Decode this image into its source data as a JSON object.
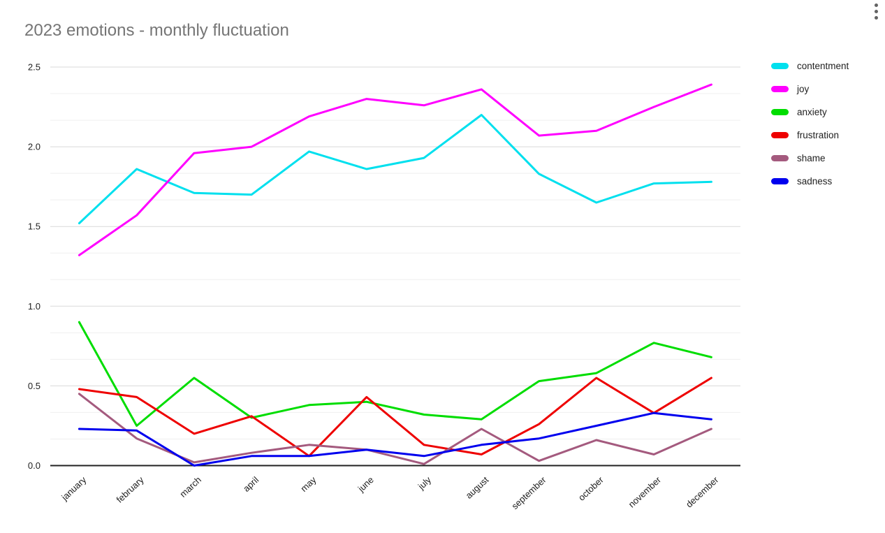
{
  "title": "2023 emotions - monthly fluctuation",
  "menu": {
    "kebab_icon": "vertical-three-dot-menu"
  },
  "chart_data": {
    "type": "line",
    "title": "2023 emotions - monthly fluctuation",
    "categories": [
      "january",
      "february",
      "march",
      "april",
      "may",
      "june",
      "july",
      "august",
      "september",
      "october",
      "november",
      "december"
    ],
    "series": [
      {
        "name": "contentment",
        "color": "#00e0ee",
        "values": [
          1.52,
          1.86,
          1.71,
          1.7,
          1.97,
          1.86,
          1.93,
          2.2,
          1.83,
          1.65,
          1.77,
          1.78
        ]
      },
      {
        "name": "joy",
        "color": "#ff00ff",
        "values": [
          1.32,
          1.57,
          1.96,
          2.0,
          2.19,
          2.3,
          2.26,
          2.36,
          2.07,
          2.1,
          2.25,
          2.39
        ]
      },
      {
        "name": "anxiety",
        "color": "#00dd00",
        "values": [
          0.9,
          0.25,
          0.55,
          0.3,
          0.38,
          0.4,
          0.32,
          0.29,
          0.53,
          0.58,
          0.77,
          0.68
        ]
      },
      {
        "name": "frustration",
        "color": "#ee0000",
        "values": [
          0.48,
          0.43,
          0.2,
          0.31,
          0.06,
          0.43,
          0.13,
          0.07,
          0.26,
          0.55,
          0.33,
          0.55
        ]
      },
      {
        "name": "shame",
        "color": "#a45a7e",
        "values": [
          0.45,
          0.17,
          0.02,
          0.08,
          0.13,
          0.1,
          0.01,
          0.23,
          0.03,
          0.16,
          0.07,
          0.23
        ]
      },
      {
        "name": "sadness",
        "color": "#0000ee",
        "values": [
          0.23,
          0.22,
          0.0,
          0.06,
          0.06,
          0.1,
          0.06,
          0.13,
          0.17,
          0.25,
          0.33,
          0.29
        ]
      }
    ],
    "ylim": [
      0,
      2.5
    ],
    "y_ticks": [
      "0.0",
      "0.5",
      "1.0",
      "1.5",
      "2.0",
      "2.5"
    ],
    "grid": {
      "major_step": 0.5,
      "minors_between_majors": 2,
      "major_color": "#d9d9d9",
      "minor_color": "#efefef"
    },
    "axis_color": "#212121",
    "legend_position": "right"
  }
}
